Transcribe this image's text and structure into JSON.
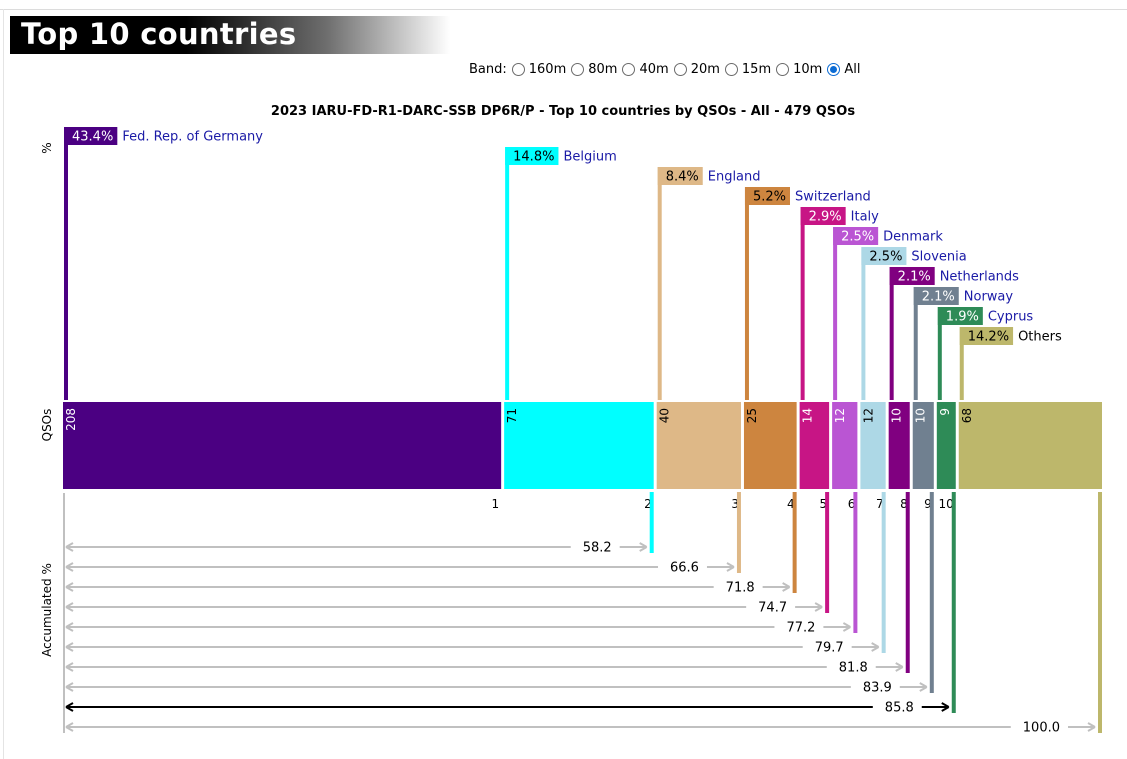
{
  "page": {
    "heading": "Top 10 countries",
    "band_label": "Band:",
    "bands": [
      {
        "label": "160m",
        "selected": false
      },
      {
        "label": "80m",
        "selected": false
      },
      {
        "label": "40m",
        "selected": false
      },
      {
        "label": "20m",
        "selected": false
      },
      {
        "label": "15m",
        "selected": false
      },
      {
        "label": "10m",
        "selected": false
      },
      {
        "label": "All",
        "selected": true
      }
    ]
  },
  "chart_data": {
    "type": "bar",
    "title": "2023 IARU-FD-R1-DARC-SSB DP6R/P - Top 10 countries by QSOs - All - 479 QSOs",
    "panel_labels": {
      "pct": "%",
      "qsos": "QSOs",
      "acc": "Accumulated %"
    },
    "categories": [
      "Fed. Rep. of Germany",
      "Belgium",
      "England",
      "Switzerland",
      "Italy",
      "Denmark",
      "Slovenia",
      "Netherlands",
      "Norway",
      "Cyprus",
      "Others"
    ],
    "ranks": [
      "1",
      "2",
      "3",
      "4",
      "5",
      "6",
      "7",
      "8",
      "9",
      "10",
      ""
    ],
    "qsos": [
      208,
      71,
      40,
      25,
      14,
      12,
      12,
      10,
      10,
      9,
      68
    ],
    "qso_labels": [
      "208",
      "71",
      "40",
      "25",
      "14",
      "12",
      "12",
      "10",
      "10",
      "9",
      "68"
    ],
    "percent_labels": [
      "43.4%",
      "14.8%",
      "8.4%",
      "5.2%",
      "2.9%",
      "2.5%",
      "2.5%",
      "2.1%",
      "2.1%",
      "1.9%",
      "14.2%"
    ],
    "accumulated_labels": [
      "58.2",
      "66.6",
      "71.8",
      "74.7",
      "77.2",
      "79.7",
      "81.8",
      "83.9",
      "85.8",
      "100.0"
    ],
    "highlight_accumulated_index": 8,
    "total_qsos": 479,
    "colors": [
      "#4b0082",
      "#00ffff",
      "#deb887",
      "#cd853f",
      "#c71585",
      "#ba55d3",
      "#add8e6",
      "#800080",
      "#708090",
      "#2e8b57",
      "#bdb76b"
    ],
    "label_colors": [
      "#1a1aa6",
      "#1a1aa6",
      "#1a1aa6",
      "#1a1aa6",
      "#1a1aa6",
      "#1a1aa6",
      "#1a1aa6",
      "#1a1aa6",
      "#1a1aa6",
      "#1a1aa6",
      "#000000"
    ],
    "percent_text_colors": [
      "#ffffff",
      "#000000",
      "#000000",
      "#000000",
      "#ffffff",
      "#ffffff",
      "#000000",
      "#ffffff",
      "#ffffff",
      "#ffffff",
      "#000000"
    ],
    "qso_text_colors": [
      "#ffffff",
      "#000000",
      "#000000",
      "#000000",
      "#ffffff",
      "#ffffff",
      "#000000",
      "#ffffff",
      "#ffffff",
      "#ffffff",
      "#000000"
    ],
    "arrow_color": "#c0c0c0",
    "highlight_arrow_color": "#000000"
  }
}
